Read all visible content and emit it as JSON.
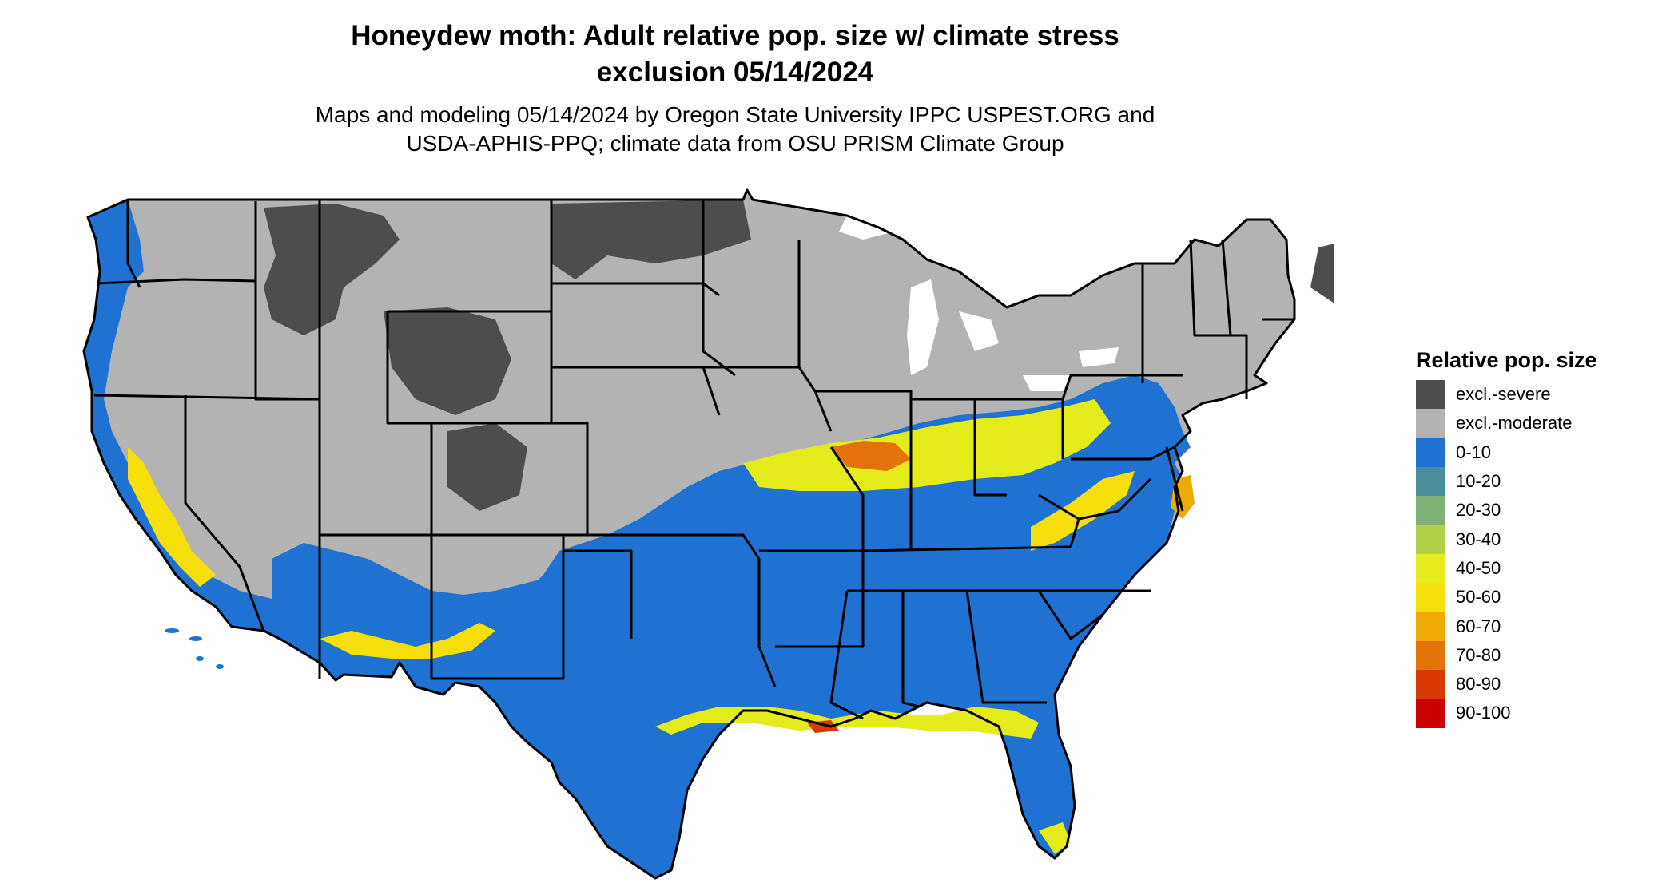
{
  "title": {
    "line1": "Honeydew moth: Adult relative pop. size w/ climate stress",
    "line2": "exclusion 05/14/2024"
  },
  "subtitle": {
    "line1": "Maps and modeling 05/14/2024 by Oregon State University IPPC USPEST.ORG and",
    "line2": "USDA-APHIS-PPQ; climate data from OSU PRISM Climate Group"
  },
  "legend": {
    "title": "Relative pop. size",
    "items": [
      {
        "label": "excl.-severe",
        "color": "#4d4d4d"
      },
      {
        "label": "excl.-moderate",
        "color": "#b3b3b3"
      },
      {
        "label": "0-10",
        "color": "#1f72d2"
      },
      {
        "label": "10-20",
        "color": "#4a8f9a"
      },
      {
        "label": "20-30",
        "color": "#7fb074"
      },
      {
        "label": "30-40",
        "color": "#b3d147"
      },
      {
        "label": "40-50",
        "color": "#e3ec1a"
      },
      {
        "label": "50-60",
        "color": "#f6de0a"
      },
      {
        "label": "60-70",
        "color": "#eeaa02"
      },
      {
        "label": "70-80",
        "color": "#e4720a"
      },
      {
        "label": "80-90",
        "color": "#d93a05"
      },
      {
        "label": "90-100",
        "color": "#cc0000"
      }
    ]
  },
  "map": {
    "region": "Contiguous United States",
    "colors": {
      "severe": "#4d4d4d",
      "moderate": "#b3b3b3",
      "low": "#1f72d2",
      "teal": "#4a8f9a",
      "green": "#7fb074",
      "lime": "#b3d147",
      "yellow": "#e3ec1a",
      "gold": "#f6de0a",
      "orange": "#eeaa02",
      "darkorange": "#e4720a",
      "red": "#d93a05",
      "border": "#000000"
    }
  }
}
